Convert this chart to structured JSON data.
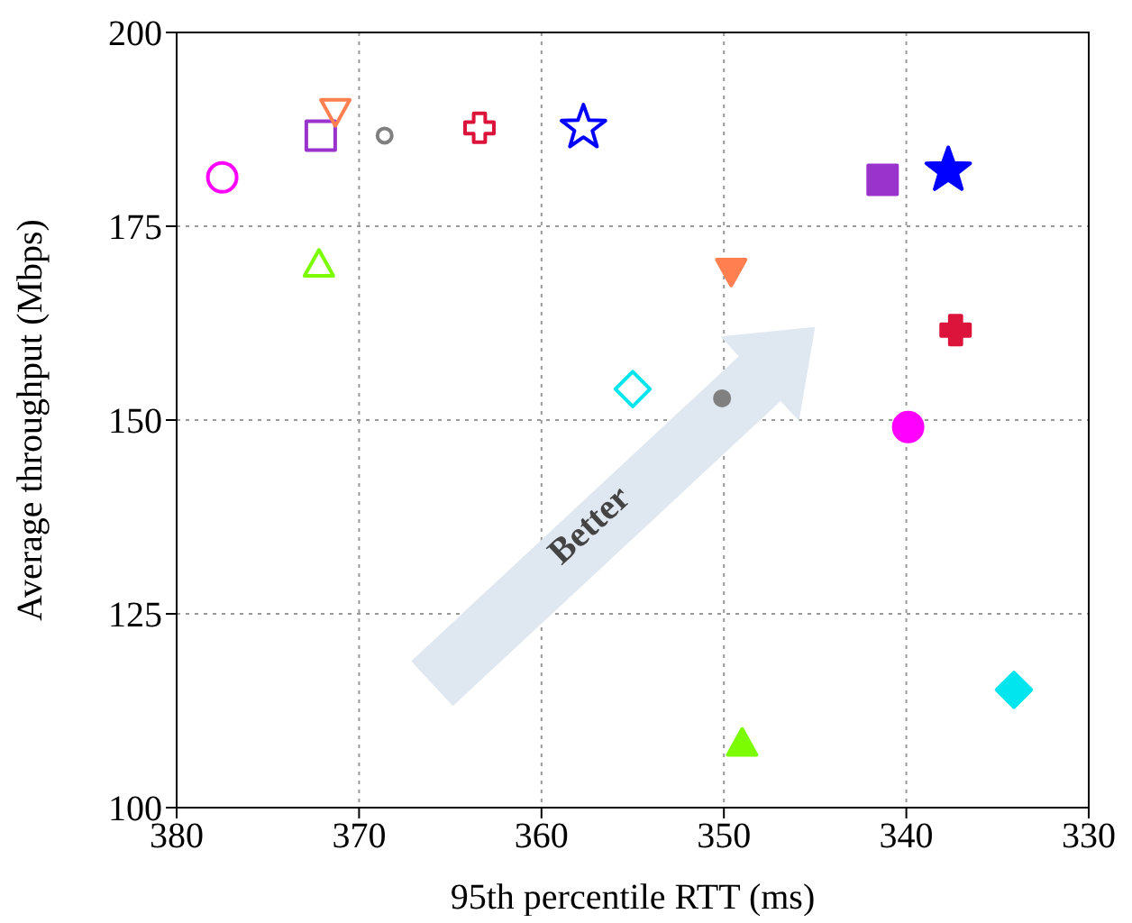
{
  "chart_data": {
    "type": "scatter",
    "xlabel": "95th percentile RTT (ms)",
    "ylabel": "Average throughput (Mbps)",
    "xlim": [
      380,
      330
    ],
    "xticks": [
      380,
      370,
      360,
      350,
      340,
      330
    ],
    "ylim": [
      100,
      200
    ],
    "yticks": [
      100,
      125,
      150,
      175,
      200
    ],
    "grid": true,
    "annotations": [
      "Better"
    ],
    "series": [
      {
        "x": [
          377.5
        ],
        "values": [
          181.3
        ],
        "color": "#ff00ff",
        "marker": "circle"
      },
      {
        "x": [
          372.1
        ],
        "values": [
          186.7
        ],
        "color": "#9933cc",
        "marker": "square"
      },
      {
        "x": [
          371.3
        ],
        "values": [
          190.0
        ],
        "color": "#ff7f50",
        "marker": "triangle-down"
      },
      {
        "x": [
          372.2
        ],
        "values": [
          169.9
        ],
        "color": "#7cfc00",
        "marker": "triangle"
      },
      {
        "x": [
          368.6
        ],
        "values": [
          186.7
        ],
        "color": "#808080",
        "marker": "circle"
      },
      {
        "x": [
          363.4
        ],
        "values": [
          187.7
        ],
        "color": "#dc143c",
        "marker": "cross"
      },
      {
        "x": [
          357.7
        ],
        "values": [
          187.7
        ],
        "color": "#0000ff",
        "marker": "star"
      },
      {
        "x": [
          355.0
        ],
        "values": [
          154.0
        ],
        "color": "#00e5ee",
        "marker": "diamond"
      },
      {
        "x": [
          350.1
        ],
        "values": [
          152.8
        ],
        "color": "#808080",
        "marker": "circle"
      },
      {
        "x": [
          349.6
        ],
        "values": [
          169.4
        ],
        "color": "#ff7f50",
        "marker": "triangle-down"
      },
      {
        "x": [
          349.0
        ],
        "values": [
          108.1
        ],
        "color": "#7cfc00",
        "marker": "triangle"
      },
      {
        "x": [
          341.3
        ],
        "values": [
          181.0
        ],
        "color": "#9933cc",
        "marker": "square"
      },
      {
        "x": [
          337.7
        ],
        "values": [
          182.2
        ],
        "color": "#0000ff",
        "marker": "star"
      },
      {
        "x": [
          337.3
        ],
        "values": [
          161.6
        ],
        "color": "#dc143c",
        "marker": "cross"
      },
      {
        "x": [
          339.9
        ],
        "values": [
          149.1
        ],
        "color": "#ff00ff",
        "marker": "circle"
      },
      {
        "x": [
          334.1
        ],
        "values": [
          115.2
        ],
        "color": "#00e5ee",
        "marker": "diamond"
      }
    ]
  }
}
